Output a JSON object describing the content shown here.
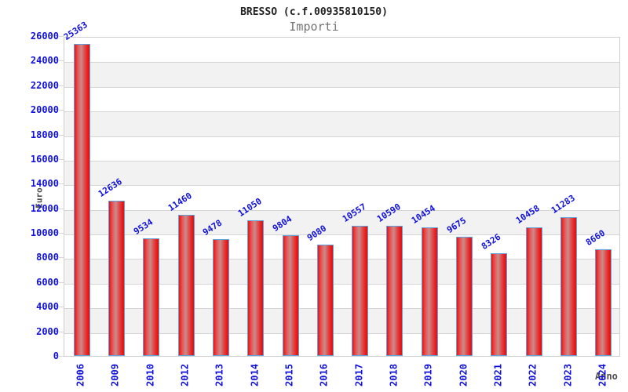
{
  "chart_data": {
    "type": "bar",
    "title": "BRESSO (c.f.00935810150)",
    "subtitle": "Importi",
    "xlabel": "Anno",
    "ylabel": "Euro",
    "categories": [
      "2006",
      "2009",
      "2010",
      "2012",
      "2013",
      "2014",
      "2015",
      "2016",
      "2017",
      "2018",
      "2019",
      "2020",
      "2021",
      "2022",
      "2023",
      "2024"
    ],
    "values": [
      25363,
      12636,
      9534,
      11460,
      9478,
      11050,
      9804,
      9080,
      10557,
      10590,
      10454,
      9675,
      8326,
      10458,
      11283,
      8660
    ],
    "bar_value_labels": [
      "25363",
      "12636",
      "9534",
      "11460",
      "9478",
      "11050",
      "9804",
      "9080",
      "10557",
      "10590",
      "10454",
      "9675",
      "8326",
      "10458",
      "11283",
      "8660"
    ],
    "ytick_labels": [
      "0",
      "2000",
      "4000",
      "6000",
      "8000",
      "10000",
      "12000",
      "14000",
      "16000",
      "18000",
      "20000",
      "22000",
      "24000",
      "26000"
    ],
    "ylim": [
      0,
      26000
    ],
    "ytick_step": 2000,
    "grid": "horizontal, alternating shaded bands every 2000",
    "legend": "none",
    "colors": {
      "label_blue": "#1010dd",
      "bar_red": "#e81414",
      "bar_mid": "#c98c8c",
      "bar_border": "#5fa2e0",
      "band_gray": "#f2f2f2",
      "gridline": "#d6d6d6",
      "plot_border": "#cfcfcf",
      "title_color": "#222222",
      "subtitle_color": "#737373",
      "axis_title_color": "#4d4d4d"
    }
  }
}
